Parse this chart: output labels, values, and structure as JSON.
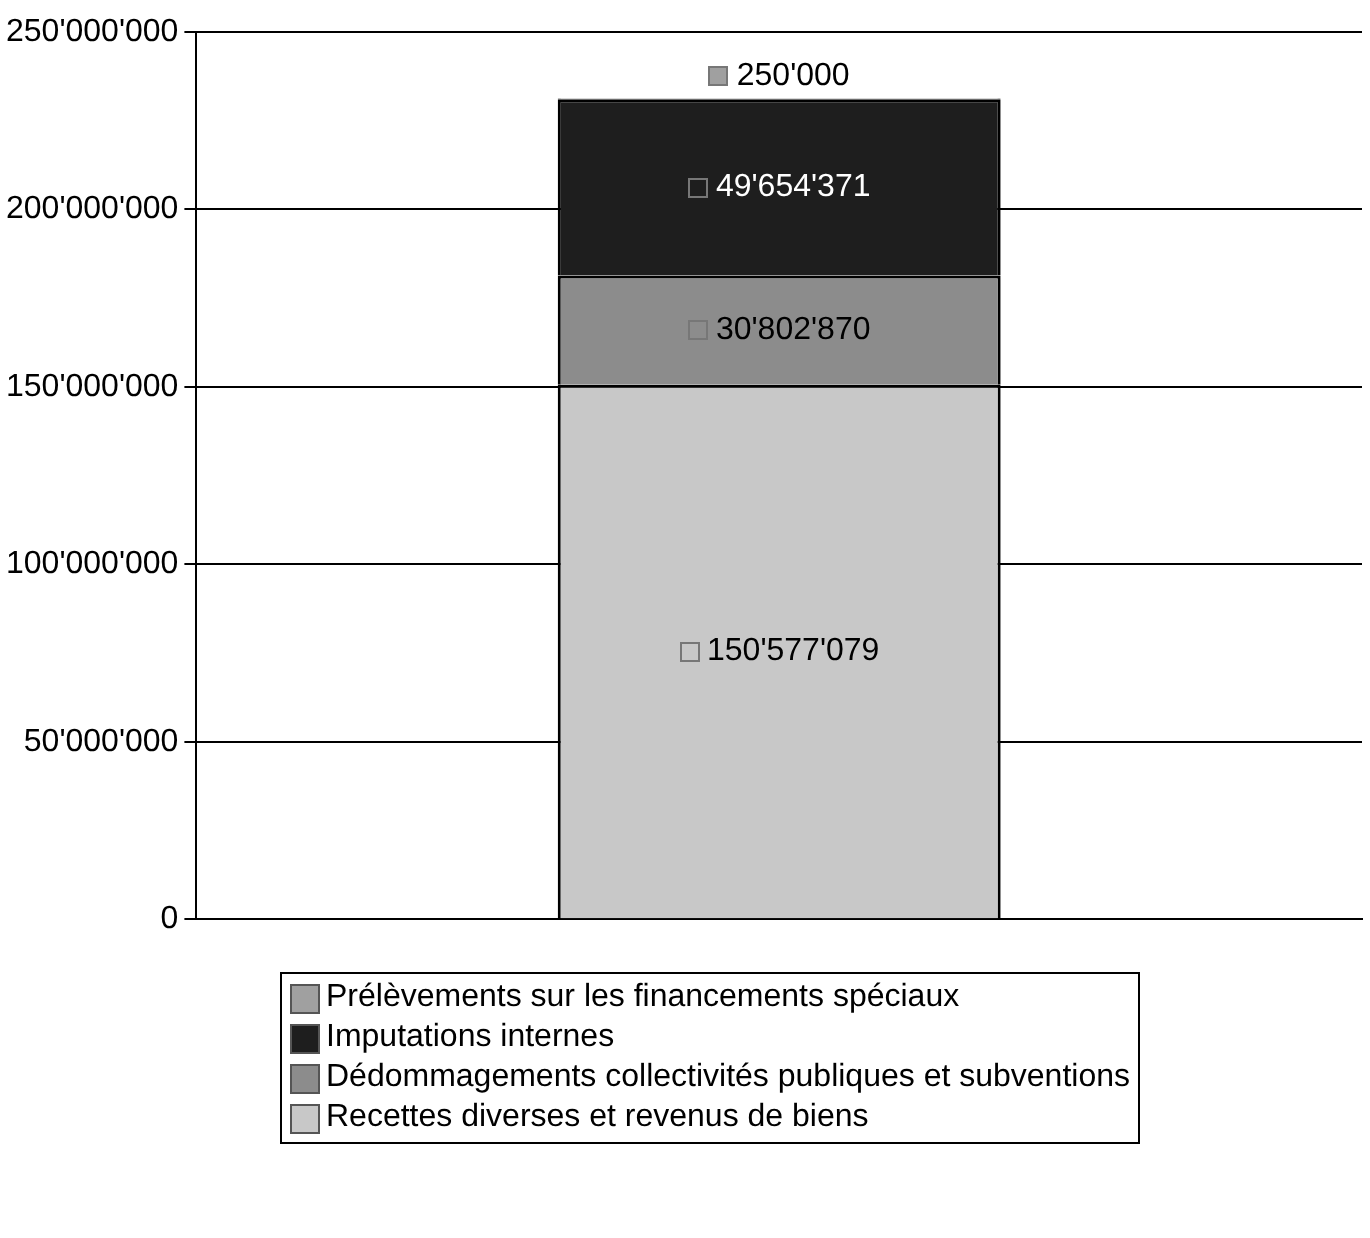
{
  "chart_data": {
    "type": "bar",
    "stacked": true,
    "categories": [
      null
    ],
    "series": [
      {
        "name": "Recettes diverses et revenus de biens",
        "color": "#c8c8c8",
        "values": [
          150577079
        ],
        "value_labels": [
          "150'577'079"
        ]
      },
      {
        "name": "Dédommagements collectivités publiques et subventions",
        "color": "#8c8c8c",
        "values": [
          30802870
        ],
        "value_labels": [
          "30'802'870"
        ]
      },
      {
        "name": "Imputations internes",
        "color": "#1e1e1e",
        "values": [
          49654371
        ],
        "value_labels": [
          "49'654'371"
        ]
      },
      {
        "name": "Prélèvements sur les financements spéciaux",
        "color": "#a0a0a0",
        "values": [
          250000
        ],
        "value_labels": [
          "250'000"
        ]
      }
    ],
    "ylim": [
      0,
      250000000
    ],
    "yticks": [
      {
        "value": 0,
        "label": "0"
      },
      {
        "value": 50000000,
        "label": "50'000'000"
      },
      {
        "value": 100000000,
        "label": "100'000'000"
      },
      {
        "value": 150000000,
        "label": "150'000'000"
      },
      {
        "value": 200000000,
        "label": "200'000'000"
      },
      {
        "value": 250000000,
        "label": "250'000'000"
      }
    ],
    "grid": "y",
    "legend": "bottom"
  }
}
